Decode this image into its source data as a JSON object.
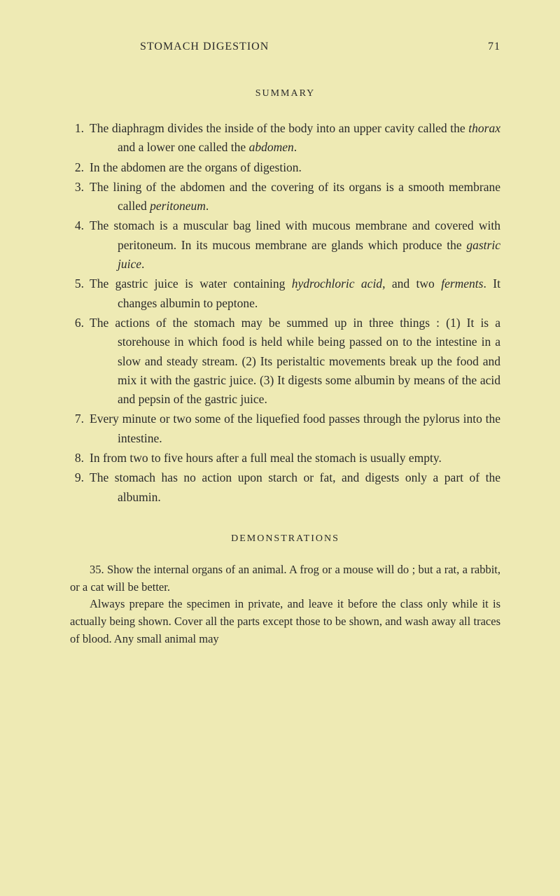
{
  "header": {
    "title": "STOMACH DIGESTION",
    "pageNumber": "71"
  },
  "summary": {
    "title": "SUMMARY",
    "items": [
      {
        "num": "1.",
        "text": "The diaphragm divides the inside of the body into an upper cavity called the <span class=\"italic\">thorax</span> and a lower one called the <span class=\"italic\">abdomen</span>."
      },
      {
        "num": "2.",
        "text": "In the abdomen are the organs of digestion."
      },
      {
        "num": "3.",
        "text": "The lining of the abdomen and the covering of its organs is a smooth membrane called <span class=\"italic\">peritoneum</span>."
      },
      {
        "num": "4.",
        "text": "The stomach is a muscular bag lined with mucous membrane and covered with peritoneum. In its mucous membrane are glands which produce the <span class=\"italic\">gastric juice</span>."
      },
      {
        "num": "5.",
        "text": "The gastric juice is water containing <span class=\"italic\">hydrochloric acid</span>, and two <span class=\"italic\">ferments</span>. It changes albumin to peptone."
      },
      {
        "num": "6.",
        "text": "The actions of the stomach may be summed up in three things : (1) It is a storehouse in which food is held while being passed on to the intestine in a slow and steady stream. (2) Its peristaltic movements break up the food and mix it with the gastric juice. (3) It digests some albumin by means of the acid and pepsin of the gastric juice."
      },
      {
        "num": "7.",
        "text": "Every minute or two some of the liquefied food passes through the pylorus into the intestine."
      },
      {
        "num": "8.",
        "text": "In from two to five hours after a full meal the stomach is usually empty."
      },
      {
        "num": "9.",
        "text": "The stomach has no action upon starch or fat, and digests only a part of the albumin."
      }
    ]
  },
  "demonstrations": {
    "title": "DEMONSTRATIONS",
    "paragraphs": [
      "35. Show the internal organs of an animal. A frog or a mouse will do ; but a rat, a rabbit, or a cat will be better.",
      "Always prepare the specimen in private, and leave it before the class only while it is actually being shown. Cover all the parts except those to be shown, and wash away all traces of blood. Any small animal may"
    ]
  }
}
